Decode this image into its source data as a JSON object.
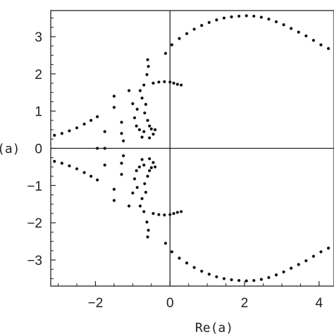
{
  "chart_data": {
    "type": "scatter",
    "title": "",
    "xlabel": "Re(a)",
    "ylabel": "Im(a)",
    "ylabel_visible": "(a)",
    "xlim": [
      -3.2,
      4.4
    ],
    "ylim": [
      -3.7,
      3.7
    ],
    "xticks": [
      -2,
      0,
      2,
      4
    ],
    "yticks": [
      -3,
      -2,
      -1,
      0,
      1,
      2,
      3
    ],
    "xtick_labels": [
      "−2",
      "0",
      "2",
      "4"
    ],
    "ytick_labels": [
      "−3",
      "−2",
      "−1",
      "0",
      "1",
      "2",
      "3"
    ],
    "grid": false,
    "legend": "none",
    "colors": {
      "points": "#111111",
      "axes": "#222222"
    },
    "series": [
      {
        "points": [
          [
            0.05,
            2.78
          ],
          [
            0.25,
            2.95
          ],
          [
            0.45,
            3.08
          ],
          [
            0.65,
            3.2
          ],
          [
            0.85,
            3.3
          ],
          [
            1.05,
            3.38
          ],
          [
            1.25,
            3.45
          ],
          [
            1.45,
            3.5
          ],
          [
            1.65,
            3.53
          ],
          [
            1.85,
            3.55
          ],
          [
            2.05,
            3.56
          ],
          [
            2.25,
            3.55
          ],
          [
            2.45,
            3.52
          ],
          [
            2.65,
            3.47
          ],
          [
            2.85,
            3.4
          ],
          [
            3.05,
            3.32
          ],
          [
            3.25,
            3.22
          ],
          [
            3.45,
            3.12
          ],
          [
            3.65,
            3.02
          ],
          [
            3.85,
            2.9
          ],
          [
            4.05,
            2.78
          ],
          [
            4.25,
            2.68
          ],
          [
            0.05,
            -2.78
          ],
          [
            0.25,
            -2.95
          ],
          [
            0.45,
            -3.08
          ],
          [
            0.65,
            -3.2
          ],
          [
            0.85,
            -3.3
          ],
          [
            1.05,
            -3.38
          ],
          [
            1.25,
            -3.45
          ],
          [
            1.45,
            -3.5
          ],
          [
            1.65,
            -3.53
          ],
          [
            1.85,
            -3.55
          ],
          [
            2.05,
            -3.56
          ],
          [
            2.25,
            -3.55
          ],
          [
            2.45,
            -3.52
          ],
          [
            2.65,
            -3.47
          ],
          [
            2.85,
            -3.4
          ],
          [
            3.05,
            -3.32
          ],
          [
            3.25,
            -3.22
          ],
          [
            3.45,
            -3.12
          ],
          [
            3.65,
            -3.02
          ],
          [
            3.85,
            -2.9
          ],
          [
            4.05,
            -2.78
          ],
          [
            4.25,
            -2.68
          ],
          [
            -0.12,
            2.55
          ],
          [
            -0.45,
            1.75
          ],
          [
            -0.3,
            1.78
          ],
          [
            -0.15,
            1.79
          ],
          [
            0.0,
            1.78
          ],
          [
            0.1,
            1.75
          ],
          [
            0.2,
            1.72
          ],
          [
            0.3,
            1.7
          ],
          [
            -0.12,
            -2.55
          ],
          [
            -0.45,
            -1.75
          ],
          [
            -0.3,
            -1.78
          ],
          [
            -0.15,
            -1.79
          ],
          [
            0.0,
            -1.78
          ],
          [
            0.1,
            -1.75
          ],
          [
            0.2,
            -1.72
          ],
          [
            0.3,
            -1.7
          ],
          [
            -0.6,
            2.38
          ],
          [
            -0.58,
            2.2
          ],
          [
            -0.62,
            1.98
          ],
          [
            -0.7,
            1.7
          ],
          [
            -0.8,
            1.55
          ],
          [
            -0.75,
            1.35
          ],
          [
            -0.65,
            1.18
          ],
          [
            -0.68,
            0.95
          ],
          [
            -0.6,
            0.75
          ],
          [
            -0.55,
            0.6
          ],
          [
            -0.5,
            0.52
          ],
          [
            -0.4,
            0.5
          ],
          [
            -0.45,
            0.38
          ],
          [
            -0.55,
            0.28
          ],
          [
            -0.6,
            -2.38
          ],
          [
            -0.58,
            -2.2
          ],
          [
            -0.62,
            -1.98
          ],
          [
            -0.7,
            -1.7
          ],
          [
            -0.8,
            -1.55
          ],
          [
            -0.75,
            -1.35
          ],
          [
            -0.65,
            -1.18
          ],
          [
            -0.68,
            -0.95
          ],
          [
            -0.6,
            -0.75
          ],
          [
            -0.55,
            -0.6
          ],
          [
            -0.5,
            -0.52
          ],
          [
            -0.4,
            -0.5
          ],
          [
            -0.45,
            -0.38
          ],
          [
            -0.55,
            -0.28
          ],
          [
            -1.1,
            1.55
          ],
          [
            -1.0,
            1.2
          ],
          [
            -0.88,
            1.05
          ],
          [
            -0.95,
            0.82
          ],
          [
            -0.9,
            0.6
          ],
          [
            -0.82,
            0.5
          ],
          [
            -0.7,
            0.45
          ],
          [
            -0.75,
            0.3
          ],
          [
            -1.1,
            -1.55
          ],
          [
            -1.0,
            -1.2
          ],
          [
            -0.88,
            -1.05
          ],
          [
            -0.95,
            -0.82
          ],
          [
            -0.9,
            -0.6
          ],
          [
            -0.82,
            -0.5
          ],
          [
            -0.7,
            -0.45
          ],
          [
            -0.75,
            -0.3
          ],
          [
            -1.5,
            1.4
          ],
          [
            -1.5,
            1.1
          ],
          [
            -1.3,
            0.7
          ],
          [
            -1.3,
            0.4
          ],
          [
            -1.25,
            0.2
          ],
          [
            -1.5,
            -1.4
          ],
          [
            -1.5,
            -1.1
          ],
          [
            -1.3,
            -0.7
          ],
          [
            -1.3,
            -0.4
          ],
          [
            -1.25,
            -0.2
          ],
          [
            -1.95,
            0.85
          ],
          [
            -1.75,
            0.45
          ],
          [
            -1.95,
            0.0
          ],
          [
            -1.75,
            0.0
          ],
          [
            -1.95,
            -0.85
          ],
          [
            -1.75,
            -0.45
          ],
          [
            -3.1,
            0.35
          ],
          [
            -2.9,
            0.4
          ],
          [
            -2.7,
            0.47
          ],
          [
            -2.5,
            0.55
          ],
          [
            -2.3,
            0.65
          ],
          [
            -2.12,
            0.75
          ],
          [
            -3.1,
            -0.35
          ],
          [
            -2.9,
            -0.4
          ],
          [
            -2.7,
            -0.47
          ],
          [
            -2.5,
            -0.55
          ],
          [
            -2.3,
            -0.65
          ],
          [
            -2.12,
            -0.75
          ]
        ]
      }
    ]
  }
}
